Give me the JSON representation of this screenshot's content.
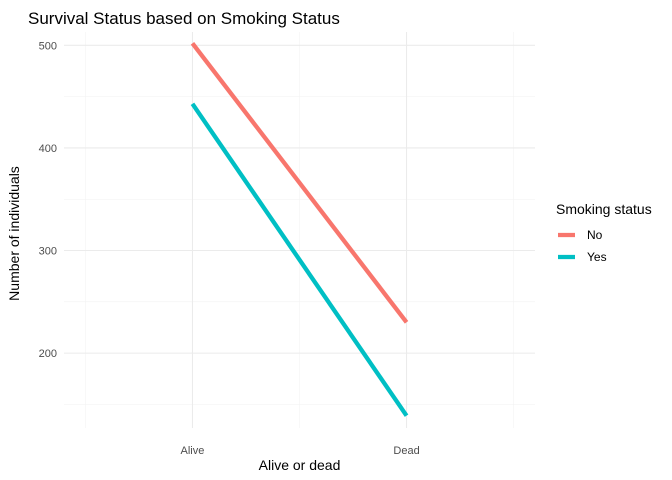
{
  "chart_data": {
    "type": "line",
    "title": "Survival Status based on Smoking Status",
    "xlabel": "Alive or dead",
    "ylabel": "Number of individuals",
    "categories": [
      "Alive",
      "Dead"
    ],
    "ylim": [
      127,
      513
    ],
    "yticks": [
      200,
      300,
      400,
      500
    ],
    "grid": true,
    "legend": {
      "title": "Smoking status",
      "position": "right"
    },
    "series": [
      {
        "name": "No",
        "values": [
          502,
          230
        ],
        "color": "#F8766D"
      },
      {
        "name": "Yes",
        "values": [
          443,
          139
        ],
        "color": "#00BFC4"
      }
    ]
  }
}
